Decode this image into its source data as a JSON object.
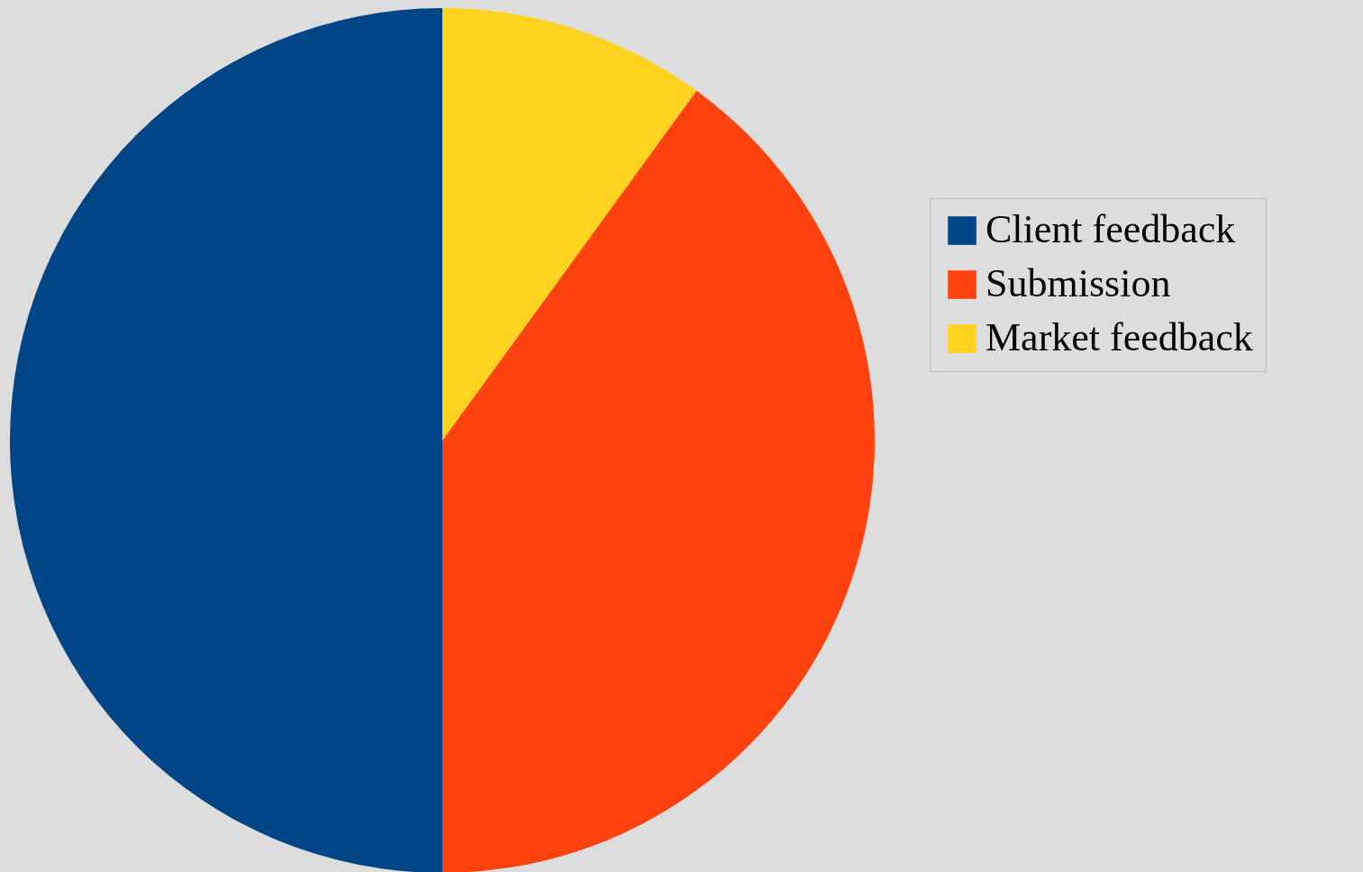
{
  "chart_data": {
    "type": "pie",
    "categories": [
      "Client feedback",
      "Submission",
      "Market feedback"
    ],
    "values": [
      50,
      40,
      10
    ],
    "colors": [
      "#004586",
      "#ff420e",
      "#ffd320"
    ],
    "legend": "right"
  }
}
